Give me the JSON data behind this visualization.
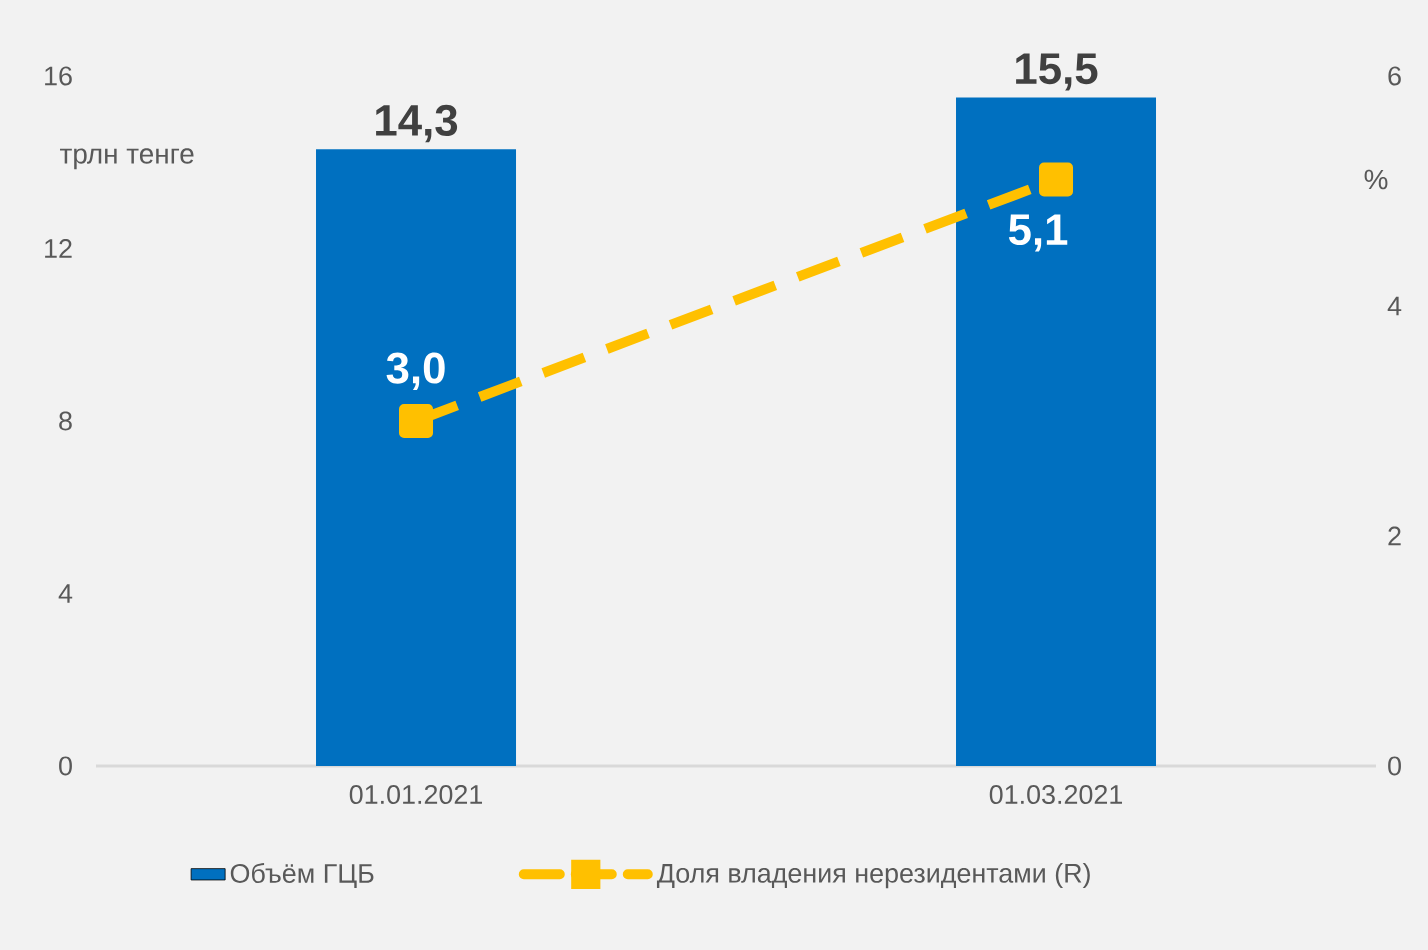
{
  "chart_data": {
    "type": "bar",
    "ylabel": "трлн тенге",
    "y2label": "%",
    "categories": [
      "01.01.2021",
      "01.03.2021"
    ],
    "series": [
      {
        "name": "Объём ГЦБ",
        "color": "#0070c0",
        "values": [
          14.3,
          15.5
        ],
        "value_labels": [
          "14,3",
          "15,5"
        ]
      },
      {
        "name": "Доля владения нерезидентами (R)",
        "type": "line",
        "axis": "y2",
        "color": "#ffc000",
        "values": [
          3.0,
          5.1
        ],
        "value_labels": [
          "3,0",
          "5,1"
        ]
      }
    ],
    "ylim": [
      0,
      16
    ],
    "yticks": [
      0,
      4,
      8,
      12,
      16
    ],
    "y2lim": [
      0,
      6
    ],
    "y2ticks": [
      0,
      2,
      4,
      6
    ],
    "marker": "square",
    "line_style": "dashed",
    "legend": "bottom"
  }
}
